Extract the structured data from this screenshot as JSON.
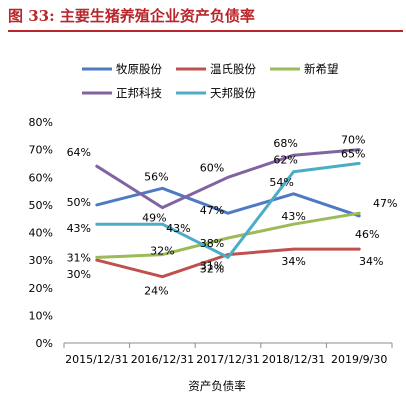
{
  "title_prefix": "图 33:",
  "title_text": "主要生猪养殖企业资产负债率",
  "chart_data": {
    "type": "line",
    "title": "图 33:主要生猪养殖企业资产负债率",
    "xlabel": "资产负债率",
    "ylabel": "",
    "categories": [
      "2015/12/31",
      "2016/12/31",
      "2017/12/31",
      "2018/12/31",
      "2019/9/30"
    ],
    "ylim": [
      0,
      80
    ],
    "yticks": [
      "0%",
      "10%",
      "20%",
      "30%",
      "40%",
      "50%",
      "60%",
      "70%",
      "80%"
    ],
    "grid": false,
    "legend_position": "top",
    "series": [
      {
        "name": "牧原股份",
        "color": "#4f7ac3",
        "values": [
          50,
          56,
          47,
          54,
          46
        ],
        "labels": [
          "50%",
          "56%",
          "47%",
          "54%",
          "46%"
        ]
      },
      {
        "name": "温氏股份",
        "color": "#c0504d",
        "values": [
          30,
          24,
          32,
          34,
          34
        ],
        "labels": [
          "30%",
          "24%",
          "32%",
          "34%",
          "34%"
        ]
      },
      {
        "name": "新希望",
        "color": "#9bbb59",
        "values": [
          31,
          32,
          38,
          43,
          47
        ],
        "labels": [
          "31%",
          "32%",
          "38%",
          "43%",
          "47%"
        ]
      },
      {
        "name": "正邦科技",
        "color": "#8064a2",
        "values": [
          64,
          49,
          60,
          68,
          70
        ],
        "labels": [
          "64%",
          "49%",
          "60%",
          "68%",
          "70%"
        ]
      },
      {
        "name": "天邦股份",
        "color": "#4bacc6",
        "values": [
          43,
          43,
          31,
          62,
          65
        ],
        "labels": [
          "43%",
          "43%",
          "31%",
          "62%",
          "65%"
        ]
      }
    ]
  }
}
